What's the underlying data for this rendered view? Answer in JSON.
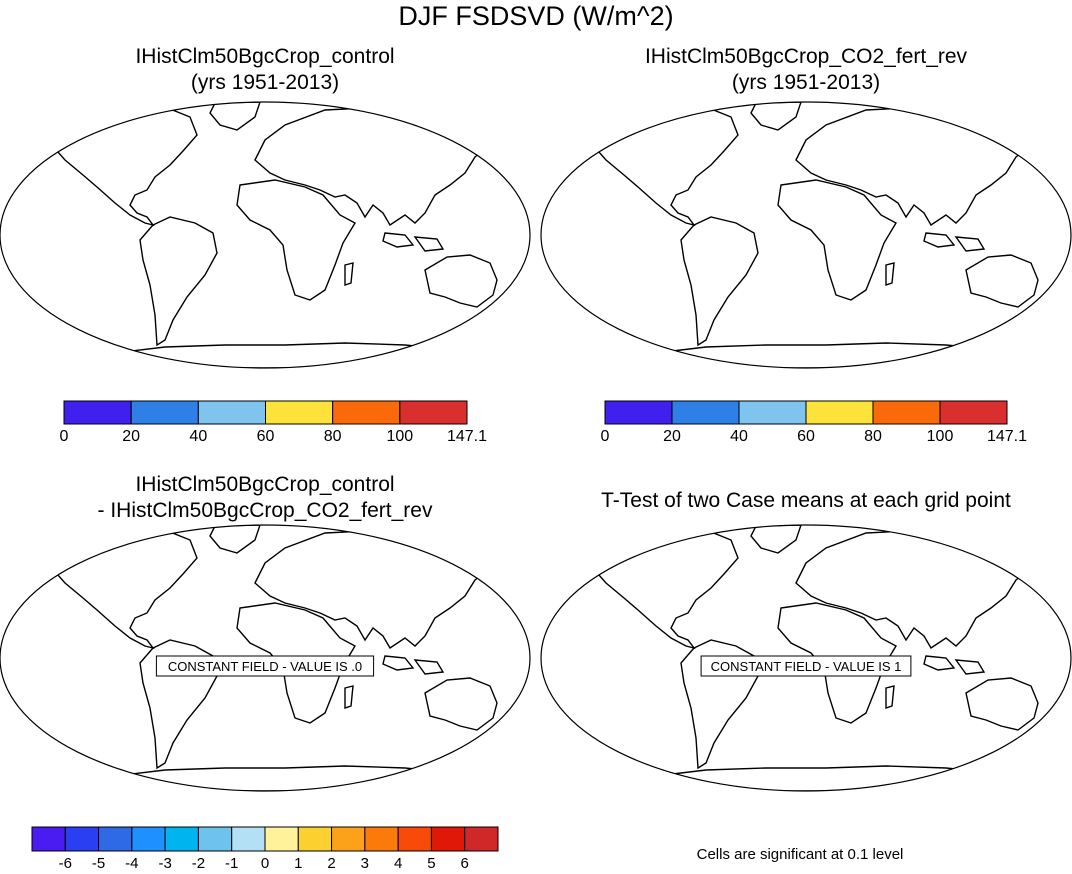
{
  "main_title": "DJF FSDSVD (W/m^2)",
  "panels": [
    {
      "title_line1": "IHistClm50BgcCrop_control",
      "title_line2": "(yrs 1951-2013)"
    },
    {
      "title_line1": "IHistClm50BgcCrop_CO2_fert_rev",
      "title_line2": "(yrs 1951-2013)"
    },
    {
      "title_line1": "IHistClm50BgcCrop_control",
      "title_line2": "- IHistClm50BgcCrop_CO2_fert_rev",
      "constant_field_label": "CONSTANT FIELD - VALUE IS .0"
    },
    {
      "title_line1": "T-Test of two Case means at each grid point",
      "constant_field_label": "CONSTANT FIELD - VALUE IS 1"
    }
  ],
  "colorbar_top": {
    "labels": [
      "0",
      "20",
      "40",
      "60",
      "80",
      "100",
      "147.1"
    ],
    "colors": [
      "#4020ee",
      "#2f80e6",
      "#7ec4ef",
      "#fce23b",
      "#fa6a0a",
      "#d92f2f"
    ]
  },
  "colorbar_diff": {
    "labels": [
      "-6",
      "-5",
      "-4",
      "-3",
      "-2",
      "-1",
      "0",
      "1",
      "2",
      "3",
      "4",
      "5",
      "6"
    ],
    "colors": [
      "#4a1cf2",
      "#2a3ef2",
      "#2f6ae6",
      "#1e90ff",
      "#00b4f0",
      "#6ec2ee",
      "#b4e0f6",
      "#fff29a",
      "#fcd02e",
      "#fca21a",
      "#fa7a0a",
      "#f84a08",
      "#e01808",
      "#d02828"
    ]
  },
  "significance_note": "Cells are significant at 0.1 level"
}
